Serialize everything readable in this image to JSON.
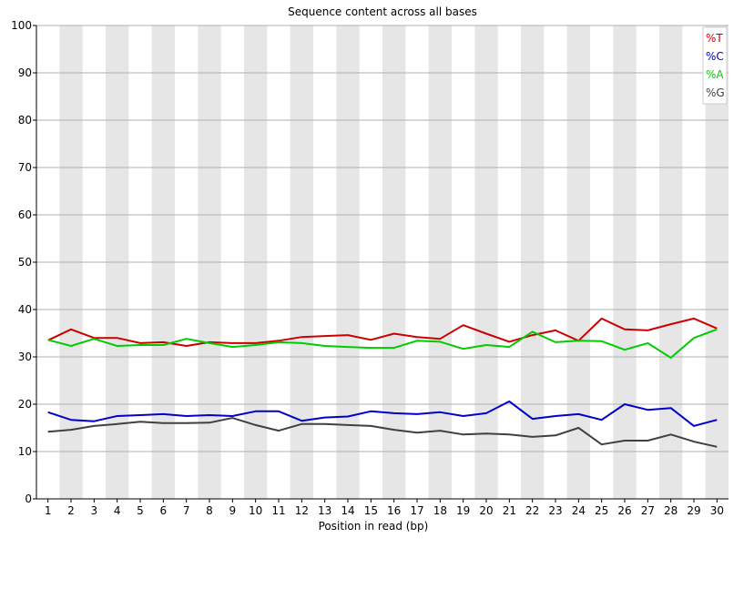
{
  "chart_data": {
    "type": "line",
    "title": "Sequence content across all bases",
    "xlabel": "Position in read (bp)",
    "ylabel": "",
    "categories": [
      "1",
      "2",
      "3",
      "4",
      "5",
      "6",
      "7",
      "8",
      "9",
      "10",
      "11",
      "12",
      "13",
      "14",
      "15",
      "16",
      "17",
      "18",
      "19",
      "20",
      "21",
      "22",
      "23",
      "24",
      "25",
      "26",
      "27",
      "28",
      "29",
      "30"
    ],
    "ylim": [
      0,
      100
    ],
    "yticks": [
      "0",
      "10",
      "20",
      "30",
      "40",
      "50",
      "60",
      "70",
      "80",
      "90",
      "100"
    ],
    "grid": true,
    "legend_position": "top-right",
    "series": [
      {
        "name": "%T",
        "color": "#cc0000",
        "values": [
          33.5,
          35.8,
          34.0,
          34.0,
          32.9,
          33.1,
          32.3,
          33.1,
          32.9,
          32.9,
          33.4,
          34.2,
          34.4,
          34.6,
          33.6,
          34.9,
          34.2,
          33.8,
          36.7,
          34.9,
          33.2,
          34.6,
          35.6,
          33.4,
          38.1,
          35.8,
          35.6,
          36.9,
          38.1,
          36.0
        ]
      },
      {
        "name": "%C",
        "color": "#0000cc",
        "values": [
          18.3,
          16.7,
          16.4,
          17.5,
          17.7,
          17.9,
          17.5,
          17.7,
          17.5,
          18.5,
          18.5,
          16.5,
          17.2,
          17.4,
          18.5,
          18.1,
          17.9,
          18.3,
          17.5,
          18.1,
          20.6,
          16.9,
          17.5,
          17.9,
          16.7,
          20.0,
          18.8,
          19.2,
          15.4,
          16.7
        ]
      },
      {
        "name": "%A",
        "color": "#00cc00",
        "values": [
          33.6,
          32.3,
          33.8,
          32.3,
          32.5,
          32.5,
          33.8,
          32.9,
          32.1,
          32.5,
          33.1,
          32.9,
          32.3,
          32.1,
          31.9,
          31.9,
          33.4,
          33.2,
          31.7,
          32.5,
          32.1,
          35.3,
          33.1,
          33.4,
          33.3,
          31.5,
          32.9,
          29.8,
          34.0,
          35.8
        ]
      },
      {
        "name": "%G",
        "color": "#404040",
        "values": [
          14.2,
          14.6,
          15.4,
          15.8,
          16.3,
          16.0,
          16.0,
          16.1,
          17.1,
          15.6,
          14.4,
          15.8,
          15.8,
          15.6,
          15.4,
          14.6,
          14.0,
          14.4,
          13.6,
          13.8,
          13.6,
          13.1,
          13.4,
          15.0,
          11.5,
          12.3,
          12.3,
          13.6,
          12.1,
          11.0
        ]
      }
    ]
  }
}
